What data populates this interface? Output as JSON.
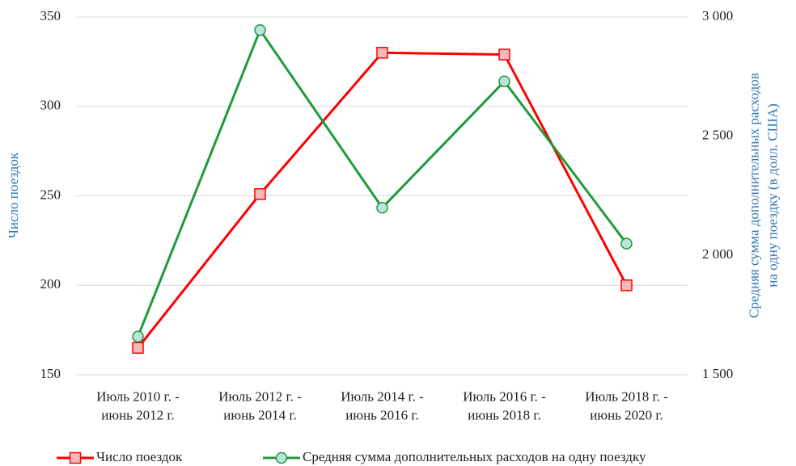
{
  "chart_data": {
    "type": "line",
    "categories": [
      "Июль 2010 г. -\nиюнь 2012 г.",
      "Июль 2012 г. -\nиюнь 2014 г.",
      "Июль 2014 г. -\nиюнь 2016 г.",
      "Июль 2016 г. -\nиюнь 2018 г.",
      "Июль 2018 г. -\nиюнь 2020 г."
    ],
    "series": [
      {
        "name": "Число поездок",
        "color": "#ff0000",
        "marker": "square",
        "values": [
          165,
          251,
          330,
          329,
          200
        ]
      },
      {
        "name": "Средняя сумма дополнительных расходов на одну поездку",
        "color": "#1f9a3c",
        "marker": "circle",
        "axis": "y2",
        "values": [
          1660,
          2945,
          2200,
          2730,
          2050
        ]
      }
    ],
    "y_label": "Число поездок",
    "y2_label": "Средняя сумма дополнительных расходов\nна одну поездку (в долл. США)",
    "ylim": [
      150,
      350
    ],
    "yticks": [
      150,
      200,
      250,
      300,
      350
    ],
    "y2lim": [
      1500,
      3000
    ],
    "y2ticks": [
      {
        "value": 1500,
        "label": "1 500"
      },
      {
        "value": 2000,
        "label": "2 000"
      },
      {
        "value": 2500,
        "label": "2 500"
      },
      {
        "value": 3000,
        "label": "3 000"
      }
    ],
    "grid": true,
    "legend": "bottom"
  }
}
